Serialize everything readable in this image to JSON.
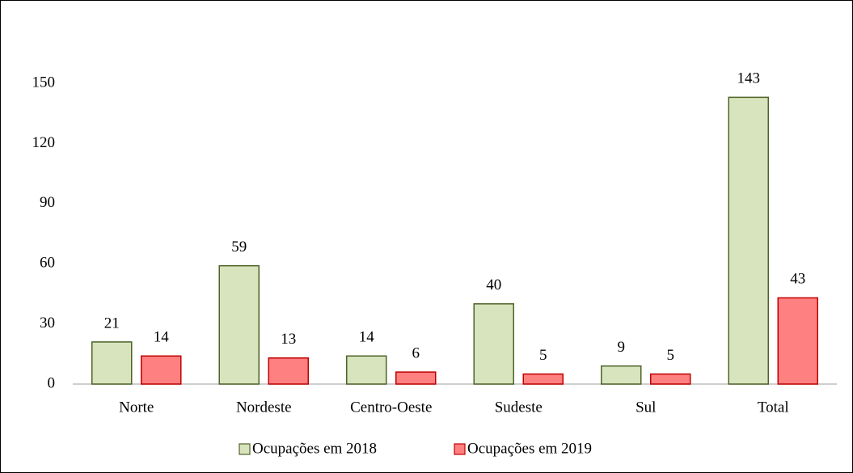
{
  "chart_data": {
    "type": "bar",
    "categories": [
      "Norte",
      "Nordeste",
      "Centro-Oeste",
      "Sudeste",
      "Sul",
      "Total"
    ],
    "series": [
      {
        "name": "Ocupações em 2018",
        "color": "#d7e4bd",
        "stroke": "#4f6228",
        "values": [
          21,
          59,
          14,
          40,
          9,
          143
        ]
      },
      {
        "name": "Ocupações em 2019",
        "color": "#ff8080",
        "stroke": "#c00000",
        "values": [
          14,
          13,
          6,
          5,
          5,
          43
        ]
      }
    ],
    "ylim": [
      0,
      150
    ],
    "yticks": [
      0,
      30,
      60,
      90,
      120,
      150
    ],
    "grid": false,
    "legend": "bottom"
  }
}
